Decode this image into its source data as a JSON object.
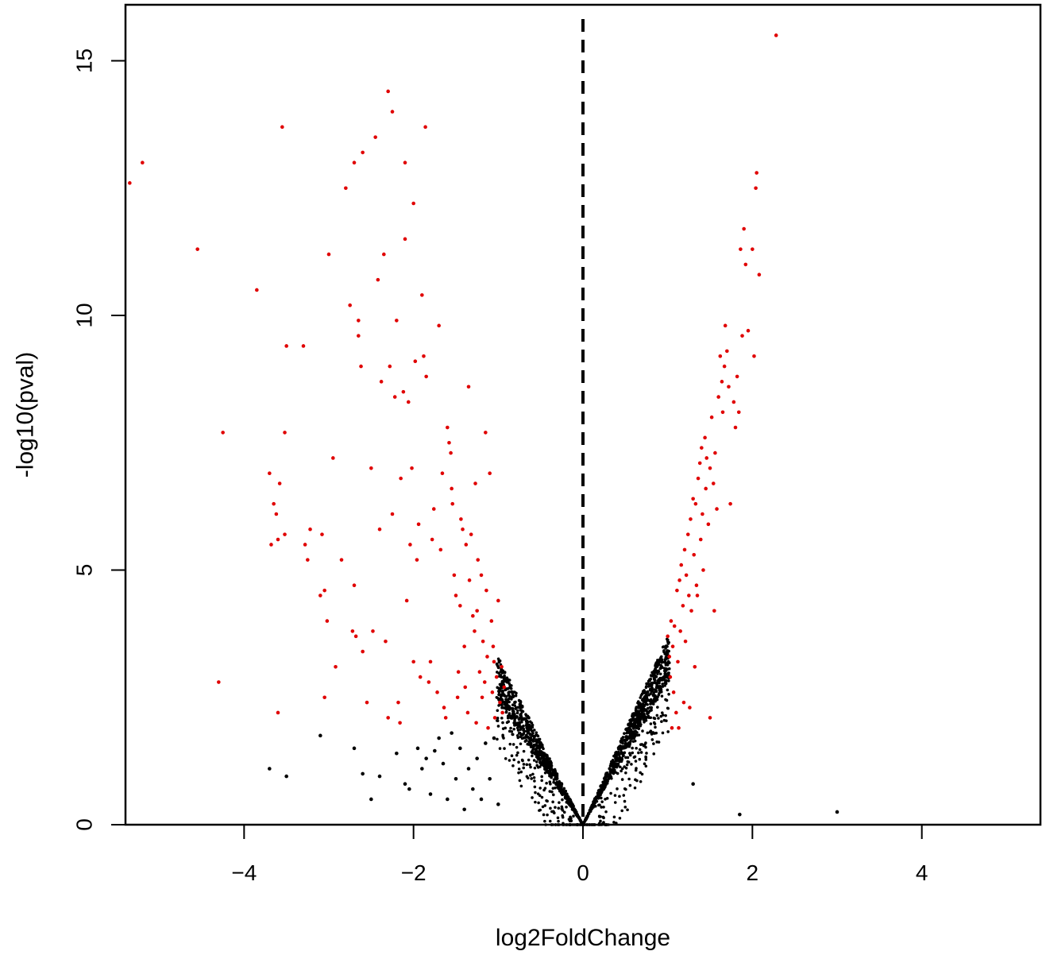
{
  "chart_data": {
    "type": "scatter",
    "title": "",
    "xlabel": "log2FoldChange",
    "ylabel": "-log10(pval)",
    "xlim": [
      -5.4,
      5.4
    ],
    "ylim": [
      0,
      16.1
    ],
    "x_ticks": [
      -4,
      -2,
      0,
      2,
      4
    ],
    "x_tick_labels": [
      "−4",
      "−2",
      "0",
      "2",
      "4"
    ],
    "y_ticks": [
      0,
      5,
      10,
      15
    ],
    "y_tick_labels": [
      "0",
      "5",
      "10",
      "15"
    ],
    "grid": false,
    "vline": {
      "x": 0,
      "style": "dashed",
      "color": "#000000"
    },
    "colors": {
      "significant": "#e00000",
      "not_significant": "#000000"
    },
    "series": [
      {
        "color": "#e00000",
        "points": [
          [
            -5.35,
            12.6
          ],
          [
            -5.2,
            13.0
          ],
          [
            -4.55,
            11.3
          ],
          [
            -4.25,
            7.7
          ],
          [
            -4.3,
            2.8
          ],
          [
            -3.85,
            10.5
          ],
          [
            -3.7,
            6.9
          ],
          [
            -3.68,
            5.5
          ],
          [
            -3.65,
            6.3
          ],
          [
            -3.62,
            6.1
          ],
          [
            -3.6,
            5.6
          ],
          [
            -3.58,
            6.7
          ],
          [
            -3.6,
            2.2
          ],
          [
            -3.55,
            13.7
          ],
          [
            -3.5,
            9.4
          ],
          [
            -3.52,
            7.7
          ],
          [
            -3.52,
            5.7
          ],
          [
            -3.3,
            9.4
          ],
          [
            -3.28,
            5.5
          ],
          [
            -3.25,
            5.2
          ],
          [
            -3.22,
            5.8
          ],
          [
            -3.1,
            4.5
          ],
          [
            -3.08,
            5.7
          ],
          [
            -3.05,
            4.6
          ],
          [
            -3.05,
            2.5
          ],
          [
            -3.02,
            4.0
          ],
          [
            -3.0,
            11.2
          ],
          [
            -2.95,
            7.2
          ],
          [
            -2.92,
            3.1
          ],
          [
            -2.85,
            5.2
          ],
          [
            -2.8,
            12.5
          ],
          [
            -2.75,
            10.2
          ],
          [
            -2.72,
            3.8
          ],
          [
            -2.7,
            4.7
          ],
          [
            -2.7,
            13.0
          ],
          [
            -2.68,
            3.7
          ],
          [
            -2.65,
            9.9
          ],
          [
            -2.65,
            9.6
          ],
          [
            -2.62,
            9.0
          ],
          [
            -2.6,
            3.4
          ],
          [
            -2.6,
            13.2
          ],
          [
            -2.55,
            2.4
          ],
          [
            -2.5,
            7.0
          ],
          [
            -2.48,
            3.8
          ],
          [
            -2.45,
            13.5
          ],
          [
            -2.42,
            10.7
          ],
          [
            -2.4,
            5.8
          ],
          [
            -2.38,
            8.7
          ],
          [
            -2.35,
            11.2
          ],
          [
            -2.33,
            3.6
          ],
          [
            -2.3,
            2.1
          ],
          [
            -2.3,
            14.4
          ],
          [
            -2.28,
            9.0
          ],
          [
            -2.25,
            14.0
          ],
          [
            -2.25,
            6.1
          ],
          [
            -2.22,
            8.4
          ],
          [
            -2.2,
            9.9
          ],
          [
            -2.18,
            2.4
          ],
          [
            -2.16,
            2.0
          ],
          [
            -2.15,
            6.8
          ],
          [
            -2.12,
            8.5
          ],
          [
            -2.1,
            13.0
          ],
          [
            -2.1,
            11.5
          ],
          [
            -2.08,
            4.4
          ],
          [
            -2.06,
            8.3
          ],
          [
            -2.04,
            5.5
          ],
          [
            -2.02,
            7.0
          ],
          [
            -2.0,
            12.2
          ],
          [
            -2.0,
            3.2
          ],
          [
            -1.98,
            9.1
          ],
          [
            -1.96,
            5.2
          ],
          [
            -1.94,
            5.9
          ],
          [
            -1.92,
            2.9
          ],
          [
            -1.9,
            10.4
          ],
          [
            -1.88,
            9.2
          ],
          [
            -1.86,
            13.7
          ],
          [
            -1.85,
            8.8
          ],
          [
            -1.82,
            2.8
          ],
          [
            -1.8,
            3.2
          ],
          [
            -1.78,
            5.6
          ],
          [
            -1.76,
            6.2
          ],
          [
            -1.72,
            2.6
          ],
          [
            -1.7,
            9.8
          ],
          [
            -1.68,
            5.4
          ],
          [
            -1.66,
            6.9
          ],
          [
            -1.64,
            2.3
          ],
          [
            -1.62,
            2.1
          ],
          [
            -1.6,
            7.8
          ],
          [
            -1.58,
            7.5
          ],
          [
            -1.56,
            7.3
          ],
          [
            -1.55,
            6.6
          ],
          [
            -1.54,
            6.3
          ],
          [
            -1.52,
            4.9
          ],
          [
            -1.5,
            4.5
          ],
          [
            -1.48,
            2.5
          ],
          [
            -1.47,
            3.0
          ],
          [
            -1.45,
            4.3
          ],
          [
            -1.44,
            6.0
          ],
          [
            -1.42,
            5.8
          ],
          [
            -1.4,
            3.5
          ],
          [
            -1.39,
            2.7
          ],
          [
            -1.38,
            5.5
          ],
          [
            -1.36,
            2.2
          ],
          [
            -1.35,
            8.6
          ],
          [
            -1.34,
            4.8
          ],
          [
            -1.32,
            5.7
          ],
          [
            -1.3,
            4.1
          ],
          [
            -1.28,
            3.8
          ],
          [
            -1.27,
            6.7
          ],
          [
            -1.26,
            2.0
          ],
          [
            -1.25,
            4.2
          ],
          [
            -1.24,
            5.2
          ],
          [
            -1.22,
            3.0
          ],
          [
            -1.2,
            4.9
          ],
          [
            -1.19,
            2.5
          ],
          [
            -1.18,
            3.6
          ],
          [
            -1.16,
            2.8
          ],
          [
            -1.15,
            7.7
          ],
          [
            -1.14,
            4.6
          ],
          [
            -1.13,
            3.3
          ],
          [
            -1.12,
            1.9
          ],
          [
            -1.1,
            6.9
          ],
          [
            -1.08,
            4.0
          ],
          [
            -1.07,
            2.6
          ],
          [
            -1.06,
            3.5
          ],
          [
            -1.05,
            3.2
          ],
          [
            -1.04,
            2.1
          ],
          [
            -1.02,
            2.9
          ],
          [
            -1.0,
            4.4
          ],
          [
            -0.98,
            2.4
          ],
          [
            -0.96,
            3.1
          ],
          [
            -0.95,
            2.2
          ],
          [
            -0.93,
            2.7
          ],
          [
            1.0,
            3.7
          ],
          [
            1.02,
            3.3
          ],
          [
            1.03,
            2.9
          ],
          [
            1.04,
            4.0
          ],
          [
            1.05,
            1.9
          ],
          [
            1.06,
            3.5
          ],
          [
            1.07,
            2.6
          ],
          [
            1.08,
            3.9
          ],
          [
            1.1,
            2.2
          ],
          [
            1.11,
            4.6
          ],
          [
            1.12,
            3.2
          ],
          [
            1.13,
            1.9
          ],
          [
            1.14,
            4.8
          ],
          [
            1.15,
            3.8
          ],
          [
            1.16,
            5.1
          ],
          [
            1.18,
            4.3
          ],
          [
            1.19,
            2.4
          ],
          [
            1.2,
            5.4
          ],
          [
            1.21,
            3.6
          ],
          [
            1.22,
            4.9
          ],
          [
            1.24,
            5.7
          ],
          [
            1.25,
            4.5
          ],
          [
            1.26,
            2.3
          ],
          [
            1.27,
            6.0
          ],
          [
            1.28,
            4.2
          ],
          [
            1.3,
            6.4
          ],
          [
            1.31,
            5.3
          ],
          [
            1.32,
            3.1
          ],
          [
            1.33,
            6.3
          ],
          [
            1.34,
            4.7
          ],
          [
            1.35,
            4.5
          ],
          [
            1.36,
            6.8
          ],
          [
            1.38,
            7.1
          ],
          [
            1.39,
            5.6
          ],
          [
            1.4,
            7.4
          ],
          [
            1.41,
            6.1
          ],
          [
            1.42,
            5.0
          ],
          [
            1.44,
            7.6
          ],
          [
            1.45,
            6.6
          ],
          [
            1.46,
            7.2
          ],
          [
            1.48,
            5.9
          ],
          [
            1.5,
            2.1
          ],
          [
            1.5,
            7.0
          ],
          [
            1.52,
            8.0
          ],
          [
            1.54,
            6.7
          ],
          [
            1.55,
            4.2
          ],
          [
            1.56,
            7.3
          ],
          [
            1.58,
            6.2
          ],
          [
            1.6,
            8.4
          ],
          [
            1.62,
            9.2
          ],
          [
            1.64,
            8.7
          ],
          [
            1.65,
            8.1
          ],
          [
            1.67,
            9.0
          ],
          [
            1.68,
            9.8
          ],
          [
            1.7,
            9.3
          ],
          [
            1.72,
            8.6
          ],
          [
            1.74,
            6.3
          ],
          [
            1.78,
            8.3
          ],
          [
            1.8,
            7.8
          ],
          [
            1.82,
            8.8
          ],
          [
            1.84,
            8.1
          ],
          [
            1.86,
            11.3
          ],
          [
            1.88,
            9.6
          ],
          [
            1.9,
            11.7
          ],
          [
            1.92,
            11.0
          ],
          [
            1.95,
            9.7
          ],
          [
            2.0,
            11.3
          ],
          [
            2.02,
            9.2
          ],
          [
            2.04,
            12.5
          ],
          [
            2.05,
            12.8
          ],
          [
            2.08,
            10.8
          ],
          [
            2.28,
            15.5
          ]
        ]
      },
      {
        "color": "#000000",
        "points": [
          [
            -3.1,
            1.75
          ],
          [
            -3.7,
            1.1
          ],
          [
            -3.5,
            0.95
          ],
          [
            -2.7,
            1.5
          ],
          [
            -2.6,
            1.0
          ],
          [
            -2.5,
            0.5
          ],
          [
            -2.4,
            0.95
          ],
          [
            -2.2,
            1.4
          ],
          [
            -2.1,
            0.8
          ],
          [
            -2.05,
            0.7
          ],
          [
            -1.95,
            1.5
          ],
          [
            -1.9,
            1.1
          ],
          [
            -1.85,
            1.3
          ],
          [
            -1.8,
            0.6
          ],
          [
            -1.75,
            1.45
          ],
          [
            -1.7,
            1.7
          ],
          [
            -1.65,
            1.2
          ],
          [
            -1.6,
            0.5
          ],
          [
            -1.55,
            1.8
          ],
          [
            -1.5,
            0.9
          ],
          [
            -1.45,
            1.5
          ],
          [
            -1.4,
            0.3
          ],
          [
            -1.35,
            1.1
          ],
          [
            -1.3,
            0.7
          ],
          [
            -1.25,
            1.3
          ],
          [
            -1.2,
            0.5
          ],
          [
            -1.15,
            1.6
          ],
          [
            -1.1,
            0.9
          ],
          [
            -1.05,
            1.7
          ],
          [
            -1.0,
            0.4
          ],
          [
            1.3,
            0.8
          ],
          [
            1.85,
            0.2
          ],
          [
            3.0,
            0.25
          ]
        ]
      }
    ]
  }
}
